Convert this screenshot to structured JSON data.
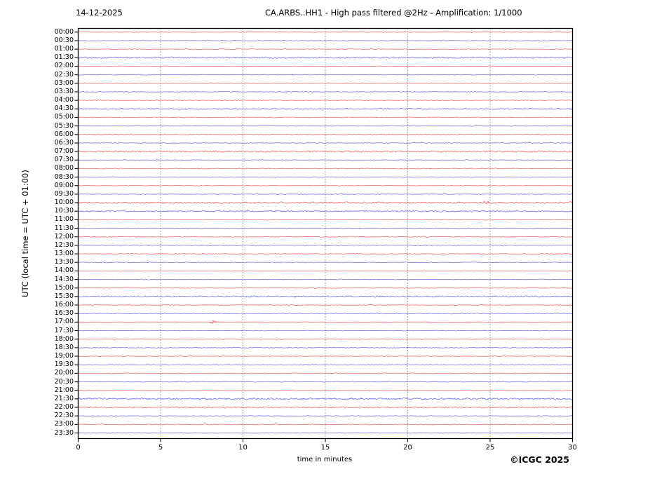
{
  "header": {
    "date": "14-12-2025",
    "title": "CA.ARBS..HH1 - High pass filtered @2Hz - Amplification: 1/1000"
  },
  "footer": {
    "xlabel": "time in minutes",
    "copyright": "©ICGC 2025"
  },
  "y_axis_title": "UTC (local time = UTC + 01:00)",
  "chart_data": {
    "type": "line",
    "subtype": "helicorder-seismogram",
    "title": "CA.ARBS..HH1 - High pass filtered @2Hz - Amplification: 1/1000",
    "date": "14-12-2025",
    "xlabel": "time in minutes",
    "ylabel": "UTC (local time = UTC + 01:00)",
    "xlim": [
      0,
      30
    ],
    "x_ticks": [
      0,
      5,
      10,
      15,
      20,
      25,
      30
    ],
    "x_gridlines": [
      5,
      10,
      15,
      20,
      25
    ],
    "grid": "vertical-dashed",
    "minutes_per_row": 30,
    "colors": {
      "hour_row": "#ef5a5a",
      "half_hour_row": "#6565e8",
      "grid": "#8a8a8a",
      "frame": "#000000"
    },
    "rows": [
      {
        "label": "00:00",
        "color": "red",
        "noise": 0.45
      },
      {
        "label": "00:30",
        "color": "blue",
        "noise": 0.4
      },
      {
        "label": "01:00",
        "color": "red",
        "noise": 0.5
      },
      {
        "label": "01:30",
        "color": "blue",
        "noise": 0.95
      },
      {
        "label": "02:00",
        "color": "red",
        "noise": 0.4
      },
      {
        "label": "02:30",
        "color": "blue",
        "noise": 0.45
      },
      {
        "label": "03:00",
        "color": "red",
        "noise": 0.5
      },
      {
        "label": "03:30",
        "color": "blue",
        "noise": 0.5
      },
      {
        "label": "04:00",
        "color": "red",
        "noise": 0.55
      },
      {
        "label": "04:30",
        "color": "blue",
        "noise": 0.8
      },
      {
        "label": "05:00",
        "color": "red",
        "noise": 0.5
      },
      {
        "label": "05:30",
        "color": "blue",
        "noise": 0.45
      },
      {
        "label": "06:00",
        "color": "red",
        "noise": 0.4
      },
      {
        "label": "06:30",
        "color": "blue",
        "noise": 0.5
      },
      {
        "label": "07:00",
        "color": "red",
        "noise": 0.85
      },
      {
        "label": "07:30",
        "color": "blue",
        "noise": 0.5
      },
      {
        "label": "08:00",
        "color": "red",
        "noise": 0.5
      },
      {
        "label": "08:30",
        "color": "blue",
        "noise": 0.45
      },
      {
        "label": "09:00",
        "color": "red",
        "noise": 0.4
      },
      {
        "label": "09:30",
        "color": "blue",
        "noise": 0.5
      },
      {
        "label": "10:00",
        "color": "red",
        "noise": 1.05
      },
      {
        "label": "10:30",
        "color": "blue",
        "noise": 0.9
      },
      {
        "label": "11:00",
        "color": "red",
        "noise": 0.5
      },
      {
        "label": "11:30",
        "color": "blue",
        "noise": 0.45
      },
      {
        "label": "12:00",
        "color": "red",
        "noise": 0.6
      },
      {
        "label": "12:30",
        "color": "blue",
        "noise": 0.5
      },
      {
        "label": "13:00",
        "color": "red",
        "noise": 0.6
      },
      {
        "label": "13:30",
        "color": "blue",
        "noise": 0.5
      },
      {
        "label": "14:00",
        "color": "red",
        "noise": 0.45
      },
      {
        "label": "14:30",
        "color": "blue",
        "noise": 0.5
      },
      {
        "label": "15:00",
        "color": "red",
        "noise": 0.45
      },
      {
        "label": "15:30",
        "color": "blue",
        "noise": 0.85
      },
      {
        "label": "16:00",
        "color": "red",
        "noise": 0.55
      },
      {
        "label": "16:30",
        "color": "blue",
        "noise": 0.5
      },
      {
        "label": "17:00",
        "color": "red",
        "noise": 0.45
      },
      {
        "label": "17:30",
        "color": "blue",
        "noise": 0.4
      },
      {
        "label": "18:00",
        "color": "red",
        "noise": 0.5
      },
      {
        "label": "18:30",
        "color": "blue",
        "noise": 0.55
      },
      {
        "label": "19:00",
        "color": "red",
        "noise": 0.5
      },
      {
        "label": "19:30",
        "color": "blue",
        "noise": 0.45
      },
      {
        "label": "20:00",
        "color": "red",
        "noise": 0.5
      },
      {
        "label": "20:30",
        "color": "blue",
        "noise": 0.45
      },
      {
        "label": "21:00",
        "color": "red",
        "noise": 0.4
      },
      {
        "label": "21:30",
        "color": "blue",
        "noise": 1.15
      },
      {
        "label": "22:00",
        "color": "red",
        "noise": 0.8
      },
      {
        "label": "22:30",
        "color": "blue",
        "noise": 0.5
      },
      {
        "label": "23:00",
        "color": "red",
        "noise": 0.6
      },
      {
        "label": "23:30",
        "color": "blue",
        "noise": 0.5
      }
    ],
    "events": [
      {
        "row": "17:00",
        "minute": 8.2,
        "amp": 2.8,
        "sigma": 0.12,
        "strength": "strong",
        "note": "compact red burst"
      },
      {
        "row": "10:00",
        "minute": 24.7,
        "amp": 1.0,
        "sigma": 0.35,
        "strength": "weak",
        "note": "darker red segment"
      },
      {
        "row": "02:30",
        "minute": 13.0,
        "amp": 1.0,
        "sigma": 0.06,
        "strength": "weak",
        "note": "tiny blue blip"
      },
      {
        "row": "15:30",
        "minute": 10.6,
        "amp": 0.7,
        "sigma": 0.5,
        "strength": "weak",
        "note": "slightly darker noise"
      },
      {
        "row": "15:30",
        "minute": 13.2,
        "amp": 0.6,
        "sigma": 0.2,
        "strength": "weak",
        "note": "slightly darker noise"
      }
    ]
  }
}
